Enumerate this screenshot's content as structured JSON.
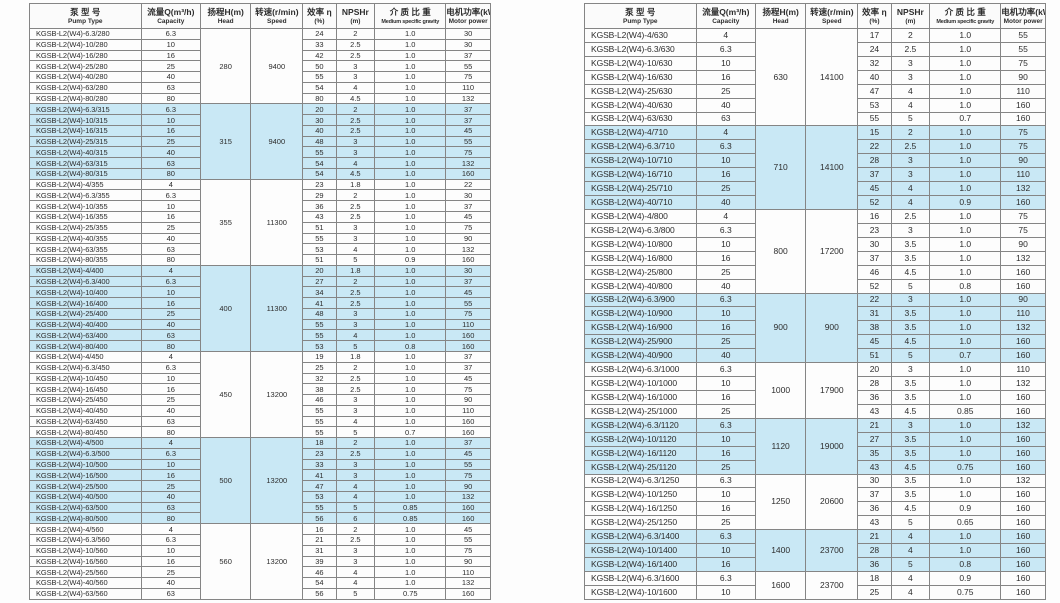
{
  "colors": {
    "page_background": "#fdfdfd",
    "shaded_row": "#c9e8f5",
    "plain_row": "#fdfdfd",
    "border": "#858585",
    "text": "#2d2d2d"
  },
  "columns": [
    {
      "key": "pump-type",
      "zh": "泵 型 号",
      "en": "Pump Type"
    },
    {
      "key": "capacity",
      "zh": "流量Q(m³/h)",
      "en": "Capacity"
    },
    {
      "key": "head",
      "zh": "扬程H(m)",
      "en": "Head"
    },
    {
      "key": "speed",
      "zh": "转速(r/min)",
      "en": "Speed"
    },
    {
      "key": "efficiency",
      "zh": "效率 η",
      "en": "(%)"
    },
    {
      "key": "npshr",
      "zh": "NPSHr",
      "en": "(m)"
    },
    {
      "key": "specific-gravity",
      "zh": "介 质 比 重",
      "en": "Medium specific gravity",
      "small": true
    },
    {
      "key": "motor-power",
      "zh": "电机功率(kW)",
      "en": "Motor power"
    }
  ],
  "row_fields": [
    "model",
    "capacity",
    "efficiency",
    "npshr",
    "gravity",
    "power"
  ],
  "tables": [
    {
      "name": "left",
      "groups": [
        {
          "head": "280",
          "speed": "9400",
          "shaded": false,
          "rows": [
            [
              "KGSB-L2(W4)-6.3/280",
              "6.3",
              "24",
              "2",
              "1.0",
              "30"
            ],
            [
              "KGSB-L2(W4)-10/280",
              "10",
              "33",
              "2.5",
              "1.0",
              "30"
            ],
            [
              "KGSB-L2(W4)-16/280",
              "16",
              "42",
              "2.5",
              "1.0",
              "37"
            ],
            [
              "KGSB-L2(W4)-25/280",
              "25",
              "50",
              "3",
              "1.0",
              "55"
            ],
            [
              "KGSB-L2(W4)-40/280",
              "40",
              "55",
              "3",
              "1.0",
              "75"
            ],
            [
              "KGSB-L2(W4)-63/280",
              "63",
              "54",
              "4",
              "1.0",
              "110"
            ],
            [
              "KGSB-L2(W4)-80/280",
              "80",
              "80",
              "4.5",
              "1.0",
              "132"
            ]
          ]
        },
        {
          "head": "315",
          "speed": "9400",
          "shaded": true,
          "rows": [
            [
              "KGSB-L2(W4)-6.3/315",
              "6.3",
              "20",
              "2",
              "1.0",
              "37"
            ],
            [
              "KGSB-L2(W4)-10/315",
              "10",
              "30",
              "2.5",
              "1.0",
              "37"
            ],
            [
              "KGSB-L2(W4)-16/315",
              "16",
              "40",
              "2.5",
              "1.0",
              "45"
            ],
            [
              "KGSB-L2(W4)-25/315",
              "25",
              "48",
              "3",
              "1.0",
              "55"
            ],
            [
              "KGSB-L2(W4)-40/315",
              "40",
              "55",
              "3",
              "1.0",
              "75"
            ],
            [
              "KGSB-L2(W4)-63/315",
              "63",
              "54",
              "4",
              "1.0",
              "132"
            ],
            [
              "KGSB-L2(W4)-80/315",
              "80",
              "54",
              "4.5",
              "1.0",
              "160"
            ]
          ]
        },
        {
          "head": "355",
          "speed": "11300",
          "shaded": false,
          "rows": [
            [
              "KGSB-L2(W4)-4/355",
              "4",
              "23",
              "1.8",
              "1.0",
              "22"
            ],
            [
              "KGSB-L2(W4)-6.3/355",
              "6.3",
              "29",
              "2",
              "1.0",
              "30"
            ],
            [
              "KGSB-L2(W4)-10/355",
              "10",
              "36",
              "2.5",
              "1.0",
              "37"
            ],
            [
              "KGSB-L2(W4)-16/355",
              "16",
              "43",
              "2.5",
              "1.0",
              "45"
            ],
            [
              "KGSB-L2(W4)-25/355",
              "25",
              "51",
              "3",
              "1.0",
              "75"
            ],
            [
              "KGSB-L2(W4)-40/355",
              "40",
              "55",
              "3",
              "1.0",
              "90"
            ],
            [
              "KGSB-L2(W4)-63/355",
              "63",
              "53",
              "4",
              "1.0",
              "132"
            ],
            [
              "KGSB-L2(W4)-80/355",
              "80",
              "51",
              "5",
              "0.9",
              "160"
            ]
          ]
        },
        {
          "head": "400",
          "speed": "11300",
          "shaded": true,
          "rows": [
            [
              "KGSB-L2(W4)-4/400",
              "4",
              "20",
              "1.8",
              "1.0",
              "30"
            ],
            [
              "KGSB-L2(W4)-6.3/400",
              "6.3",
              "27",
              "2",
              "1.0",
              "37"
            ],
            [
              "KGSB-L2(W4)-10/400",
              "10",
              "34",
              "2.5",
              "1.0",
              "45"
            ],
            [
              "KGSB-L2(W4)-16/400",
              "16",
              "41",
              "2.5",
              "1.0",
              "55"
            ],
            [
              "KGSB-L2(W4)-25/400",
              "25",
              "48",
              "3",
              "1.0",
              "75"
            ],
            [
              "KGSB-L2(W4)-40/400",
              "40",
              "55",
              "3",
              "1.0",
              "110"
            ],
            [
              "KGSB-L2(W4)-63/400",
              "63",
              "55",
              "4",
              "1.0",
              "160"
            ],
            [
              "KGSB-L2(W4)-80/400",
              "80",
              "53",
              "5",
              "0.8",
              "160"
            ]
          ]
        },
        {
          "head": "450",
          "speed": "13200",
          "shaded": false,
          "rows": [
            [
              "KGSB-L2(W4)-4/450",
              "4",
              "19",
              "1.8",
              "1.0",
              "37"
            ],
            [
              "KGSB-L2(W4)-6.3/450",
              "6.3",
              "25",
              "2",
              "1.0",
              "37"
            ],
            [
              "KGSB-L2(W4)-10/450",
              "10",
              "32",
              "2.5",
              "1.0",
              "45"
            ],
            [
              "KGSB-L2(W4)-16/450",
              "16",
              "38",
              "2.5",
              "1.0",
              "75"
            ],
            [
              "KGSB-L2(W4)-25/450",
              "25",
              "46",
              "3",
              "1.0",
              "90"
            ],
            [
              "KGSB-L2(W4)-40/450",
              "40",
              "55",
              "3",
              "1.0",
              "110"
            ],
            [
              "KGSB-L2(W4)-63/450",
              "63",
              "55",
              "4",
              "1.0",
              "160"
            ],
            [
              "KGSB-L2(W4)-80/450",
              "80",
              "55",
              "5",
              "0.7",
              "160"
            ]
          ]
        },
        {
          "head": "500",
          "speed": "13200",
          "shaded": true,
          "rows": [
            [
              "KGSB-L2(W4)-4/500",
              "4",
              "18",
              "2",
              "1.0",
              "37"
            ],
            [
              "KGSB-L2(W4)-6.3/500",
              "6.3",
              "23",
              "2.5",
              "1.0",
              "45"
            ],
            [
              "KGSB-L2(W4)-10/500",
              "10",
              "33",
              "3",
              "1.0",
              "55"
            ],
            [
              "KGSB-L2(W4)-16/500",
              "16",
              "41",
              "3",
              "1.0",
              "75"
            ],
            [
              "KGSB-L2(W4)-25/500",
              "25",
              "47",
              "4",
              "1.0",
              "90"
            ],
            [
              "KGSB-L2(W4)-40/500",
              "40",
              "53",
              "4",
              "1.0",
              "132"
            ],
            [
              "KGSB-L2(W4)-63/500",
              "63",
              "55",
              "5",
              "0.85",
              "160"
            ],
            [
              "KGSB-L2(W4)-80/500",
              "80",
              "56",
              "6",
              "0.85",
              "160"
            ]
          ]
        },
        {
          "head": "560",
          "speed": "13200",
          "shaded": false,
          "rows": [
            [
              "KGSB-L2(W4)-4/560",
              "4",
              "16",
              "2",
              "1.0",
              "45"
            ],
            [
              "KGSB-L2(W4)-6.3/560",
              "6.3",
              "21",
              "2.5",
              "1.0",
              "55"
            ],
            [
              "KGSB-L2(W4)-10/560",
              "10",
              "31",
              "3",
              "1.0",
              "75"
            ],
            [
              "KGSB-L2(W4)-16/560",
              "16",
              "39",
              "3",
              "1.0",
              "90"
            ],
            [
              "KGSB-L2(W4)-25/560",
              "25",
              "46",
              "4",
              "1.0",
              "110"
            ],
            [
              "KGSB-L2(W4)-40/560",
              "40",
              "54",
              "4",
              "1.0",
              "132"
            ],
            [
              "KGSB-L2(W4)-63/560",
              "63",
              "56",
              "5",
              "0.75",
              "160"
            ]
          ]
        }
      ]
    },
    {
      "name": "right",
      "groups": [
        {
          "head": "630",
          "speed": "14100",
          "shaded": false,
          "rows": [
            [
              "KGSB-L2(W4)-4/630",
              "4",
              "17",
              "2",
              "1.0",
              "55"
            ],
            [
              "KGSB-L2(W4)-6.3/630",
              "6.3",
              "24",
              "2.5",
              "1.0",
              "55"
            ],
            [
              "KGSB-L2(W4)-10/630",
              "10",
              "32",
              "3",
              "1.0",
              "75"
            ],
            [
              "KGSB-L2(W4)-16/630",
              "16",
              "40",
              "3",
              "1.0",
              "90"
            ],
            [
              "KGSB-L2(W4)-25/630",
              "25",
              "47",
              "4",
              "1.0",
              "110"
            ],
            [
              "KGSB-L2(W4)-40/630",
              "40",
              "53",
              "4",
              "1.0",
              "160"
            ],
            [
              "KGSB-L2(W4)-63/630",
              "63",
              "55",
              "5",
              "0.7",
              "160"
            ]
          ]
        },
        {
          "head": "710",
          "speed": "14100",
          "shaded": true,
          "rows": [
            [
              "KGSB-L2(W4)-4/710",
              "4",
              "15",
              "2",
              "1.0",
              "75"
            ],
            [
              "KGSB-L2(W4)-6.3/710",
              "6.3",
              "22",
              "2.5",
              "1.0",
              "75"
            ],
            [
              "KGSB-L2(W4)-10/710",
              "10",
              "28",
              "3",
              "1.0",
              "90"
            ],
            [
              "KGSB-L2(W4)-16/710",
              "16",
              "37",
              "3",
              "1.0",
              "110"
            ],
            [
              "KGSB-L2(W4)-25/710",
              "25",
              "45",
              "4",
              "1.0",
              "132"
            ],
            [
              "KGSB-L2(W4)-40/710",
              "40",
              "52",
              "4",
              "0.9",
              "160"
            ]
          ]
        },
        {
          "head": "800",
          "speed": "17200",
          "shaded": false,
          "rows": [
            [
              "KGSB-L2(W4)-4/800",
              "4",
              "16",
              "2.5",
              "1.0",
              "75"
            ],
            [
              "KGSB-L2(W4)-6.3/800",
              "6.3",
              "23",
              "3",
              "1.0",
              "75"
            ],
            [
              "KGSB-L2(W4)-10/800",
              "10",
              "30",
              "3.5",
              "1.0",
              "90"
            ],
            [
              "KGSB-L2(W4)-16/800",
              "16",
              "37",
              "3.5",
              "1.0",
              "132"
            ],
            [
              "KGSB-L2(W4)-25/800",
              "25",
              "46",
              "4.5",
              "1.0",
              "160"
            ],
            [
              "KGSB-L2(W4)-40/800",
              "40",
              "52",
              "5",
              "0.8",
              "160"
            ]
          ]
        },
        {
          "head": "900",
          "speed": "900",
          "shaded": true,
          "rows": [
            [
              "KGSB-L2(W4)-6.3/900",
              "6.3",
              "22",
              "3",
              "1.0",
              "90"
            ],
            [
              "KGSB-L2(W4)-10/900",
              "10",
              "31",
              "3.5",
              "1.0",
              "110"
            ],
            [
              "KGSB-L2(W4)-16/900",
              "16",
              "38",
              "3.5",
              "1.0",
              "132"
            ],
            [
              "KGSB-L2(W4)-25/900",
              "25",
              "45",
              "4.5",
              "1.0",
              "160"
            ],
            [
              "KGSB-L2(W4)-40/900",
              "40",
              "51",
              "5",
              "0.7",
              "160"
            ]
          ]
        },
        {
          "head": "1000",
          "speed": "17900",
          "shaded": false,
          "rows": [
            [
              "KGSB-L2(W4)-6.3/1000",
              "6.3",
              "20",
              "3",
              "1.0",
              "110"
            ],
            [
              "KGSB-L2(W4)-10/1000",
              "10",
              "28",
              "3.5",
              "1.0",
              "132"
            ],
            [
              "KGSB-L2(W4)-16/1000",
              "16",
              "36",
              "3.5",
              "1.0",
              "160"
            ],
            [
              "KGSB-L2(W4)-25/1000",
              "25",
              "43",
              "4.5",
              "0.85",
              "160"
            ]
          ]
        },
        {
          "head": "1120",
          "speed": "19000",
          "shaded": true,
          "rows": [
            [
              "KGSB-L2(W4)-6.3/1120",
              "6.3",
              "21",
              "3",
              "1.0",
              "132"
            ],
            [
              "KGSB-L2(W4)-10/1120",
              "10",
              "27",
              "3.5",
              "1.0",
              "160"
            ],
            [
              "KGSB-L2(W4)-16/1120",
              "16",
              "35",
              "3.5",
              "1.0",
              "160"
            ],
            [
              "KGSB-L2(W4)-25/1120",
              "25",
              "43",
              "4.5",
              "0.75",
              "160"
            ]
          ]
        },
        {
          "head": "1250",
          "speed": "20600",
          "shaded": false,
          "rows": [
            [
              "KGSB-L2(W4)-6.3/1250",
              "6.3",
              "30",
              "3.5",
              "1.0",
              "132"
            ],
            [
              "KGSB-L2(W4)-10/1250",
              "10",
              "37",
              "3.5",
              "1.0",
              "160"
            ],
            [
              "KGSB-L2(W4)-16/1250",
              "16",
              "36",
              "4.5",
              "0.9",
              "160"
            ],
            [
              "KGSB-L2(W4)-25/1250",
              "25",
              "43",
              "5",
              "0.65",
              "160"
            ]
          ]
        },
        {
          "head": "1400",
          "speed": "23700",
          "shaded": true,
          "rows": [
            [
              "KGSB-L2(W4)-6.3/1400",
              "6.3",
              "21",
              "4",
              "1.0",
              "160"
            ],
            [
              "KGSB-L2(W4)-10/1400",
              "10",
              "28",
              "4",
              "1.0",
              "160"
            ],
            [
              "KGSB-L2(W4)-16/1400",
              "16",
              "36",
              "5",
              "0.8",
              "160"
            ]
          ]
        },
        {
          "head": "1600",
          "speed": "23700",
          "shaded": false,
          "rows": [
            [
              "KGSB-L2(W4)-6.3/1600",
              "6.3",
              "18",
              "4",
              "0.9",
              "160"
            ],
            [
              "KGSB-L2(W4)-10/1600",
              "10",
              "25",
              "4",
              "0.75",
              "160"
            ]
          ]
        }
      ]
    }
  ]
}
